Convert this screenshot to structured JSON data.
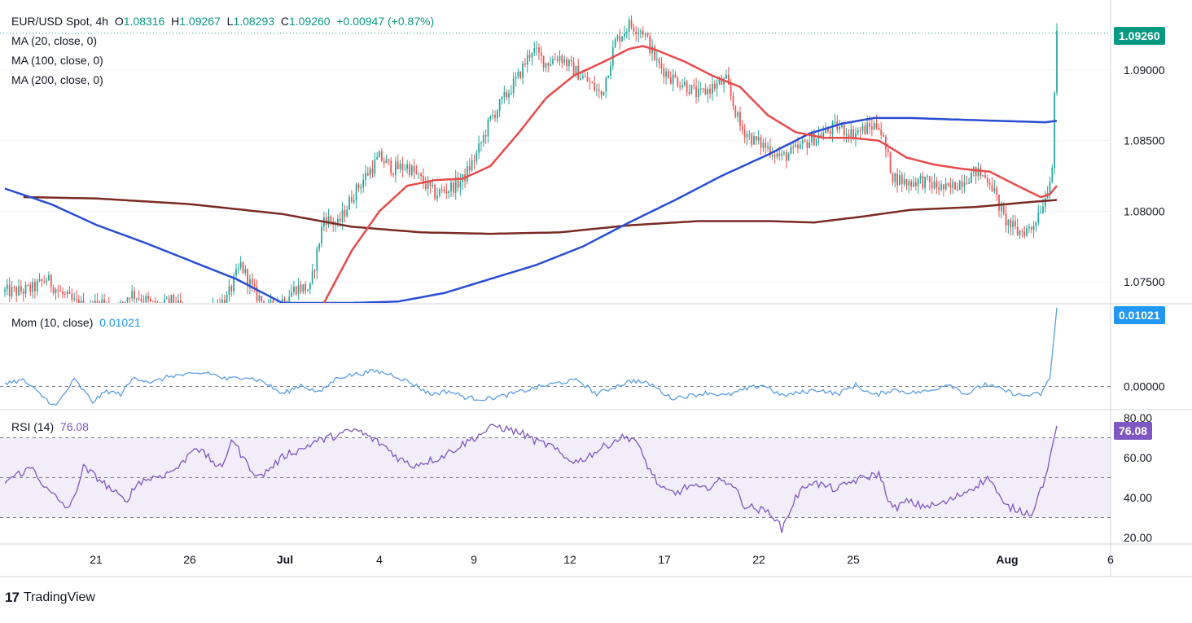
{
  "header": {
    "symbol": "EUR/USD Spot, 4h",
    "o_label": "O",
    "o_value": "1.08316",
    "h_label": "H",
    "h_value": "1.09267",
    "l_label": "L",
    "l_value": "1.08293",
    "c_label": "C",
    "c_value": "1.09260",
    "change": "+0.00947 (+0.87%)"
  },
  "indicators": {
    "ma20": "MA (20, close, 0)",
    "ma100": "MA (100, close, 0)",
    "ma200": "MA (200, close, 0)",
    "mom_label": "Mom (10, close)",
    "mom_value": "0.01021",
    "rsi_label": "RSI (14)",
    "rsi_value": "76.08"
  },
  "price_tag": {
    "value": "1.09260",
    "color": "#089981"
  },
  "mom_tag": {
    "value": "0.01021",
    "color": "#2196f3"
  },
  "rsi_tag": {
    "value": "76.08",
    "color": "#7e57c2"
  },
  "brand": {
    "logo": "17",
    "name": "TradingView"
  },
  "chart_data": {
    "type": "candlestick",
    "price_axis": {
      "ticks": [
        "1.09000",
        "1.08500",
        "1.08000",
        "1.07500"
      ],
      "range": [
        1.0735,
        1.0945
      ]
    },
    "mom_axis": {
      "ticks": [
        "0.00000"
      ]
    },
    "rsi_axis": {
      "ticks": [
        "80.00",
        "60.00",
        "40.00",
        "20.00"
      ],
      "range": [
        20,
        80
      ],
      "band": [
        30,
        70
      ],
      "mid": 50
    },
    "x_ticks": [
      "21",
      "26",
      "Jul",
      "4",
      "9",
      "12",
      "17",
      "22",
      "25",
      "Aug",
      "6"
    ],
    "colors": {
      "up": "#26a69a",
      "down": "#ef5350",
      "ma20": "#e84b4b",
      "ma100": "#2a4ed3",
      "ma200": "#7a2a24",
      "mom": "#5b9ee8",
      "rsi": "#7e57c2"
    },
    "close_anchors": [
      [
        0,
        1.0743
      ],
      [
        6,
        1.0743
      ],
      [
        12,
        1.0745
      ],
      [
        18,
        1.0752
      ],
      [
        24,
        1.0742
      ],
      [
        30,
        1.0735
      ],
      [
        36,
        1.0731
      ],
      [
        42,
        1.0736
      ],
      [
        48,
        1.0728
      ],
      [
        54,
        1.0742
      ],
      [
        60,
        1.0738
      ],
      [
        66,
        1.0731
      ],
      [
        72,
        1.0736
      ],
      [
        78,
        1.0728
      ],
      [
        84,
        1.0722
      ],
      [
        90,
        1.0732
      ],
      [
        96,
        1.0738
      ],
      [
        102,
        1.0762
      ],
      [
        108,
        1.0742
      ],
      [
        114,
        1.0731
      ],
      [
        120,
        1.0737
      ],
      [
        126,
        1.0746
      ],
      [
        132,
        1.0745
      ],
      [
        138,
        1.0796
      ],
      [
        144,
        1.079
      ],
      [
        150,
        1.081
      ],
      [
        156,
        1.0825
      ],
      [
        162,
        1.0838
      ],
      [
        168,
        1.083
      ],
      [
        174,
        1.0832
      ],
      [
        180,
        1.0822
      ],
      [
        186,
        1.0812
      ],
      [
        192,
        1.0816
      ],
      [
        198,
        1.0822
      ],
      [
        204,
        1.084
      ],
      [
        210,
        1.0865
      ],
      [
        216,
        1.088
      ],
      [
        222,
        1.0895
      ],
      [
        228,
        1.0915
      ],
      [
        234,
        1.0905
      ],
      [
        240,
        1.091
      ],
      [
        246,
        1.09
      ],
      [
        252,
        1.0892
      ],
      [
        258,
        1.0882
      ],
      [
        264,
        1.092
      ],
      [
        270,
        1.0932
      ],
      [
        276,
        1.0928
      ],
      [
        282,
        1.0905
      ],
      [
        288,
        1.0895
      ],
      [
        294,
        1.089
      ],
      [
        300,
        1.0882
      ],
      [
        306,
        1.0888
      ],
      [
        312,
        1.0892
      ],
      [
        318,
        1.086
      ],
      [
        324,
        1.085
      ],
      [
        330,
        1.0845
      ],
      [
        336,
        1.0838
      ],
      [
        342,
        1.0843
      ],
      [
        348,
        1.085
      ],
      [
        354,
        1.0855
      ],
      [
        360,
        1.086
      ],
      [
        366,
        1.0855
      ],
      [
        372,
        1.0858
      ],
      [
        378,
        1.0862
      ],
      [
        384,
        1.0825
      ],
      [
        390,
        1.082
      ],
      [
        396,
        1.0822
      ],
      [
        402,
        1.0818
      ],
      [
        408,
        1.0815
      ],
      [
        414,
        1.0822
      ],
      [
        420,
        1.0828
      ],
      [
        426,
        1.0822
      ],
      [
        432,
        1.0795
      ],
      [
        438,
        1.0785
      ],
      [
        444,
        1.0788
      ],
      [
        450,
        1.081
      ],
      [
        453,
        1.0832
      ],
      [
        455,
        1.0926
      ]
    ],
    "mom_axis_range": [
      -0.003,
      0.0105
    ],
    "mom_anchors": [
      [
        0,
        0.0005
      ],
      [
        8,
        0.0008
      ],
      [
        16,
        -0.0012
      ],
      [
        22,
        -0.0026
      ],
      [
        30,
        0.0009
      ],
      [
        38,
        -0.002
      ],
      [
        44,
        -0.0006
      ],
      [
        50,
        -0.001
      ],
      [
        56,
        0.0012
      ],
      [
        64,
        0.0005
      ],
      [
        72,
        0.0014
      ],
      [
        80,
        0.0015
      ],
      [
        88,
        0.0018
      ],
      [
        96,
        0.0009
      ],
      [
        104,
        0.0013
      ],
      [
        112,
        0.0006
      ],
      [
        120,
        -0.001
      ],
      [
        128,
        0.0002
      ],
      [
        136,
        -0.0008
      ],
      [
        144,
        0.0012
      ],
      [
        152,
        0.0016
      ],
      [
        160,
        0.002
      ],
      [
        168,
        0.0015
      ],
      [
        176,
        0.0004
      ],
      [
        184,
        -0.001
      ],
      [
        192,
        -0.0006
      ],
      [
        200,
        -0.0015
      ],
      [
        208,
        -0.0016
      ],
      [
        216,
        -0.0012
      ],
      [
        224,
        -0.0006
      ],
      [
        232,
        0.0
      ],
      [
        240,
        0.0005
      ],
      [
        248,
        0.0008
      ],
      [
        256,
        -0.001
      ],
      [
        264,
        0.0
      ],
      [
        272,
        0.0008
      ],
      [
        280,
        0.0002
      ],
      [
        288,
        -0.0015
      ],
      [
        296,
        -0.0012
      ],
      [
        304,
        -0.0008
      ],
      [
        312,
        -0.0012
      ],
      [
        320,
        -0.0004
      ],
      [
        328,
        0.0002
      ],
      [
        336,
        -0.0012
      ],
      [
        344,
        -0.0008
      ],
      [
        352,
        -0.0004
      ],
      [
        360,
        -0.001
      ],
      [
        368,
        0.0002
      ],
      [
        376,
        -0.0012
      ],
      [
        384,
        -0.0004
      ],
      [
        392,
        -0.0008
      ],
      [
        400,
        -0.0006
      ],
      [
        408,
        0.0004
      ],
      [
        416,
        -0.001
      ],
      [
        424,
        0.0003
      ],
      [
        432,
        -0.0005
      ],
      [
        440,
        -0.0012
      ],
      [
        448,
        -0.001
      ],
      [
        452,
        0.001
      ],
      [
        455,
        0.0102
      ]
    ],
    "rsi_anchors": [
      [
        0,
        48
      ],
      [
        6,
        52
      ],
      [
        12,
        55
      ],
      [
        18,
        44
      ],
      [
        24,
        38
      ],
      [
        28,
        34
      ],
      [
        34,
        55
      ],
      [
        40,
        50
      ],
      [
        46,
        44
      ],
      [
        52,
        38
      ],
      [
        58,
        48
      ],
      [
        64,
        50
      ],
      [
        70,
        52
      ],
      [
        76,
        56
      ],
      [
        82,
        66
      ],
      [
        88,
        60
      ],
      [
        94,
        54
      ],
      [
        98,
        70
      ],
      [
        104,
        58
      ],
      [
        110,
        50
      ],
      [
        116,
        56
      ],
      [
        122,
        62
      ],
      [
        128,
        64
      ],
      [
        134,
        68
      ],
      [
        140,
        70
      ],
      [
        146,
        72
      ],
      [
        152,
        74
      ],
      [
        158,
        70
      ],
      [
        164,
        66
      ],
      [
        170,
        60
      ],
      [
        176,
        56
      ],
      [
        182,
        58
      ],
      [
        188,
        60
      ],
      [
        194,
        64
      ],
      [
        200,
        68
      ],
      [
        206,
        72
      ],
      [
        212,
        76
      ],
      [
        218,
        74
      ],
      [
        224,
        72
      ],
      [
        230,
        68
      ],
      [
        236,
        66
      ],
      [
        242,
        60
      ],
      [
        248,
        58
      ],
      [
        254,
        62
      ],
      [
        260,
        66
      ],
      [
        266,
        70
      ],
      [
        272,
        70
      ],
      [
        278,
        56
      ],
      [
        284,
        44
      ],
      [
        290,
        42
      ],
      [
        296,
        46
      ],
      [
        302,
        44
      ],
      [
        308,
        48
      ],
      [
        314,
        48
      ],
      [
        320,
        36
      ],
      [
        326,
        34
      ],
      [
        332,
        32
      ],
      [
        336,
        24
      ],
      [
        342,
        40
      ],
      [
        348,
        48
      ],
      [
        354,
        46
      ],
      [
        360,
        44
      ],
      [
        366,
        48
      ],
      [
        372,
        50
      ],
      [
        378,
        52
      ],
      [
        384,
        34
      ],
      [
        390,
        38
      ],
      [
        396,
        36
      ],
      [
        402,
        36
      ],
      [
        408,
        38
      ],
      [
        414,
        42
      ],
      [
        420,
        46
      ],
      [
        426,
        50
      ],
      [
        432,
        36
      ],
      [
        438,
        34
      ],
      [
        444,
        32
      ],
      [
        450,
        50
      ],
      [
        455,
        76
      ]
    ],
    "ma20_anchors": [
      [
        138,
        1.0735
      ],
      [
        150,
        1.0772
      ],
      [
        162,
        1.08
      ],
      [
        174,
        1.0818
      ],
      [
        186,
        1.0822
      ],
      [
        198,
        1.0823
      ],
      [
        210,
        1.0832
      ],
      [
        222,
        1.0855
      ],
      [
        234,
        1.088
      ],
      [
        246,
        1.0896
      ],
      [
        258,
        1.0905
      ],
      [
        270,
        1.0915
      ],
      [
        276,
        1.0917
      ],
      [
        282,
        1.0914
      ],
      [
        294,
        1.0906
      ],
      [
        306,
        1.0896
      ],
      [
        318,
        1.0888
      ],
      [
        330,
        1.0868
      ],
      [
        342,
        1.0856
      ],
      [
        354,
        1.0852
      ],
      [
        366,
        1.0852
      ],
      [
        378,
        1.085
      ],
      [
        390,
        1.0838
      ],
      [
        402,
        1.0833
      ],
      [
        414,
        1.083
      ],
      [
        426,
        1.0828
      ],
      [
        438,
        1.0818
      ],
      [
        448,
        1.081
      ],
      [
        452,
        1.0812
      ],
      [
        455,
        1.0818
      ]
    ],
    "ma100_anchors": [
      [
        0,
        1.0816
      ],
      [
        20,
        1.0805
      ],
      [
        40,
        1.079
      ],
      [
        60,
        1.0778
      ],
      [
        80,
        1.0765
      ],
      [
        100,
        1.0752
      ],
      [
        120,
        1.0735
      ],
      [
        150,
        1.0735
      ],
      [
        170,
        1.0736
      ],
      [
        190,
        1.0742
      ],
      [
        210,
        1.0752
      ],
      [
        230,
        1.0762
      ],
      [
        250,
        1.0775
      ],
      [
        270,
        1.0792
      ],
      [
        290,
        1.0808
      ],
      [
        310,
        1.0825
      ],
      [
        330,
        1.084
      ],
      [
        348,
        1.0855
      ],
      [
        362,
        1.0862
      ],
      [
        376,
        1.0866
      ],
      [
        392,
        1.0866
      ],
      [
        410,
        1.0865
      ],
      [
        430,
        1.0864
      ],
      [
        450,
        1.0863
      ],
      [
        455,
        1.0864
      ]
    ],
    "ma200_anchors": [
      [
        8,
        1.081
      ],
      [
        40,
        1.0809
      ],
      [
        80,
        1.0805
      ],
      [
        120,
        1.0798
      ],
      [
        150,
        1.0789
      ],
      [
        180,
        1.0785
      ],
      [
        210,
        1.0784
      ],
      [
        240,
        1.0785
      ],
      [
        270,
        1.079
      ],
      [
        300,
        1.0793
      ],
      [
        330,
        1.0793
      ],
      [
        350,
        1.0792
      ],
      [
        370,
        1.0796
      ],
      [
        392,
        1.0801
      ],
      [
        420,
        1.0803
      ],
      [
        440,
        1.0806
      ],
      [
        455,
        1.0808
      ]
    ],
    "n_bars": 456
  }
}
